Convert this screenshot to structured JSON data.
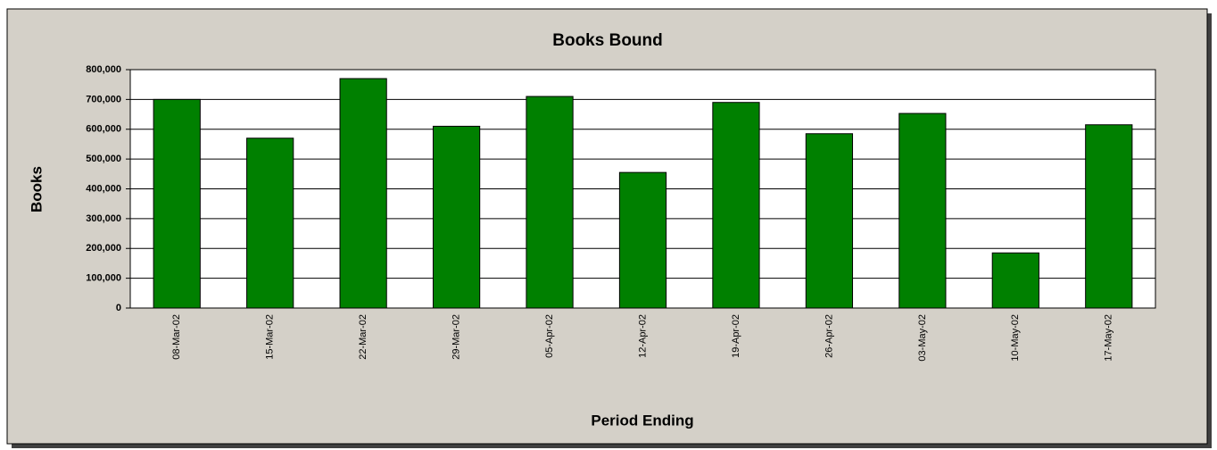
{
  "chart_data": {
    "type": "bar",
    "title": "Books Bound",
    "x_label": "Period Ending",
    "y_label": "Books",
    "categories": [
      "08-Mar-02",
      "15-Mar-02",
      "22-Mar-02",
      "29-Mar-02",
      "05-Apr-02",
      "12-Apr-02",
      "19-Apr-02",
      "26-Apr-02",
      "03-May-02",
      "10-May-02",
      "17-May-02"
    ],
    "values": [
      700000,
      570000,
      770000,
      610000,
      710000,
      455000,
      690000,
      585000,
      653000,
      185000,
      615000
    ],
    "color": "#008000",
    "ylim": [
      0,
      800000
    ],
    "yticks": [
      0,
      {
        "value": 100000,
        "label": "100,000"
      },
      {
        "value": 200000,
        "label": "200,000"
      },
      {
        "value": 300000,
        "label": "300,000"
      },
      {
        "value": 400000,
        "label": "400,000"
      },
      {
        "value": 500000,
        "label": "500,000"
      },
      {
        "value": 600000,
        "label": "600,000"
      },
      {
        "value": 700000,
        "label": "700,000"
      },
      {
        "value": 800000,
        "label": "800,000"
      }
    ],
    "grid": true
  }
}
